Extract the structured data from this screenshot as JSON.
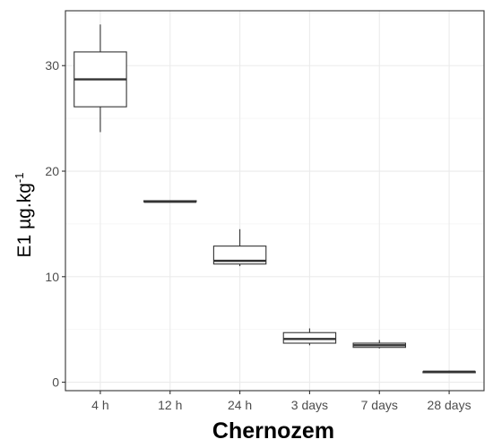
{
  "chart_data": {
    "type": "box",
    "xlabel": "Chernozem",
    "ylabel": {
      "main": "E1 µg.kg",
      "superscript": "-1"
    },
    "categories": [
      "4 h",
      "12 h",
      "24 h",
      "3 days",
      "7 days",
      "28 days"
    ],
    "boxes": [
      {
        "category": "4 h",
        "min": 23.7,
        "q1": 26.1,
        "median": 28.7,
        "q3": 31.3,
        "max": 33.9
      },
      {
        "category": "12 h",
        "min": 17.1,
        "q1": 17.1,
        "median": 17.1,
        "q3": 17.2,
        "max": 17.2
      },
      {
        "category": "24 h",
        "min": 11.0,
        "q1": 11.2,
        "median": 11.5,
        "q3": 12.9,
        "max": 14.5
      },
      {
        "category": "3 days",
        "min": 3.5,
        "q1": 3.7,
        "median": 4.1,
        "q3": 4.7,
        "max": 5.1
      },
      {
        "category": "7 days",
        "min": 3.2,
        "q1": 3.3,
        "median": 3.5,
        "q3": 3.7,
        "max": 4.0
      },
      {
        "category": "28 days",
        "min": 0.9,
        "q1": 0.9,
        "median": 1.0,
        "q3": 1.0,
        "max": 1.1
      }
    ],
    "yticks": [
      0,
      10,
      20,
      30
    ],
    "ylim": [
      -0.8,
      35.2
    ],
    "grid": true,
    "colors": {
      "box_fill": "#ffffff",
      "box_stroke": "#333333",
      "grid_major": "#ebebeb",
      "grid_minor": "#f5f5f5",
      "panel_border": "#333333"
    }
  }
}
